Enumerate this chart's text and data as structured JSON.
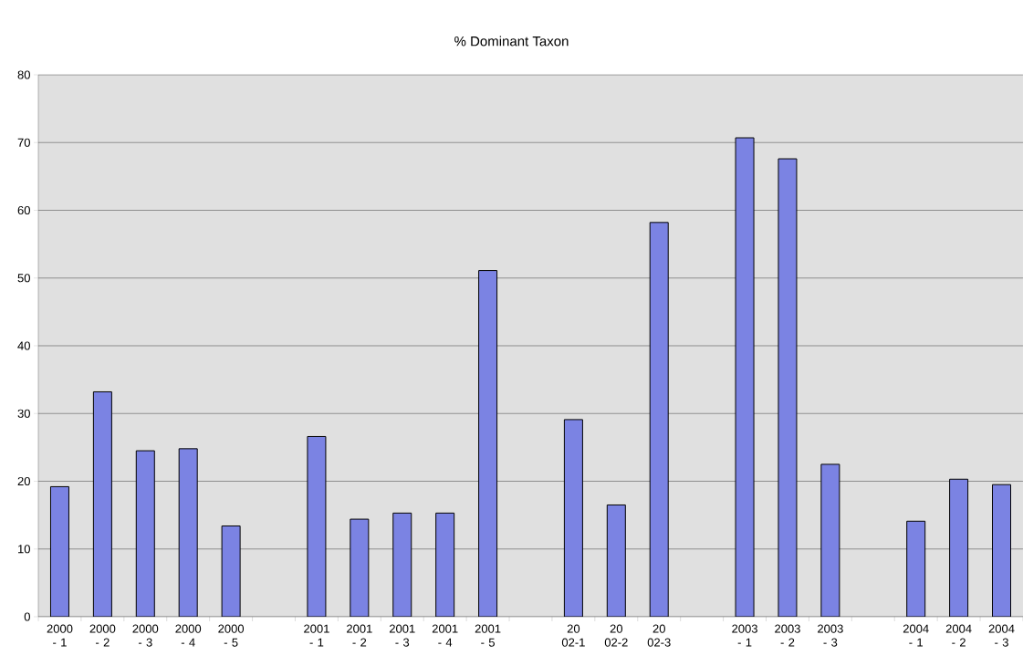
{
  "chart_data": {
    "type": "bar",
    "title": "% Dominant Taxon",
    "categories": [
      "2000 - 1",
      "2000 - 2",
      "2000 - 3",
      "2000 - 4",
      "2000 - 5",
      null,
      "2001 - 1",
      "2001 - 2",
      "2001 - 3",
      "2001 - 4",
      "2001 - 5",
      null,
      "20 02-1",
      "20 02-2",
      "20 02-3",
      null,
      "2003 - 1",
      "2003 - 2",
      "2003 - 3",
      null,
      "2004 - 1",
      "2004 - 2",
      "2004 - 3"
    ],
    "values": [
      19.2,
      33.2,
      24.5,
      24.8,
      13.4,
      null,
      26.6,
      14.4,
      15.3,
      15.3,
      51.1,
      null,
      29.1,
      16.5,
      58.2,
      null,
      70.7,
      67.6,
      22.5,
      null,
      14.1,
      20.3,
      19.5
    ],
    "color": "#7b83e3",
    "ylim": [
      0,
      80
    ],
    "yticks": [
      0,
      10,
      20,
      30,
      40,
      50,
      60,
      70,
      80
    ],
    "grid": "y"
  }
}
